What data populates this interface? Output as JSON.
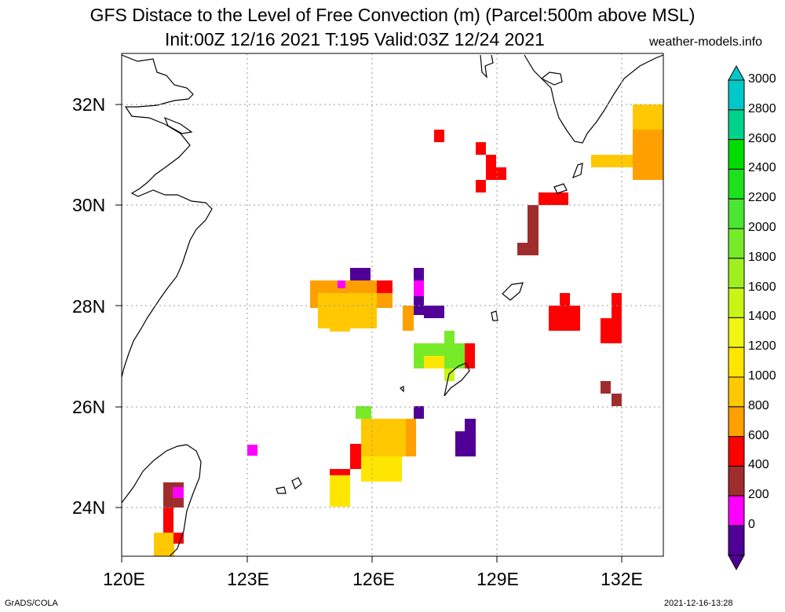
{
  "title": {
    "line1": "GFS Distace to the Level of Free Convection (m) (Parcel:500m above MSL)",
    "line2": "Init:00Z 12/16 2021 T:195 Valid:03Z 12/24 2021",
    "site": "weather-models.info"
  },
  "footer": {
    "left": "GrADS/COLA",
    "right": "2021-12-16-13:28"
  },
  "axes": {
    "lat_labels": [
      "32N",
      "30N",
      "28N",
      "26N",
      "24N"
    ],
    "lon_labels": [
      "120E",
      "123E",
      "126E",
      "129E",
      "132E"
    ],
    "lon_range": [
      120,
      133
    ],
    "lat_range": [
      23,
      33
    ]
  },
  "colorbar": {
    "labels": [
      "3000",
      "2800",
      "2600",
      "2400",
      "2200",
      "2000",
      "1800",
      "1600",
      "1400",
      "1200",
      "1000",
      "800",
      "600",
      "400",
      "200",
      "0"
    ],
    "colors": [
      "#00c8c8",
      "#00d28c",
      "#00dc00",
      "#1ee11e",
      "#4be632",
      "#78eb28",
      "#a0f01e",
      "#c8f514",
      "#f0f514",
      "#ffe600",
      "#ffc800",
      "#ffa000",
      "#ff0000",
      "#a02d2d",
      "#ff00ff",
      "#500096"
    ]
  }
}
